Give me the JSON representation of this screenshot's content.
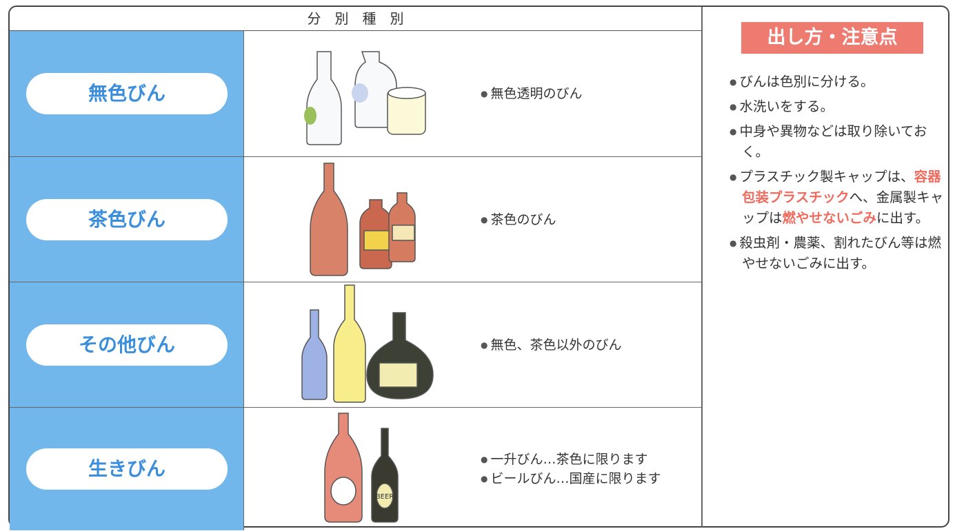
{
  "table": {
    "header": "分　別　種　別",
    "rows": [
      {
        "label": "無色びん",
        "notes": [
          "無色透明のびん"
        ]
      },
      {
        "label": "茶色びん",
        "notes": [
          "茶色のびん"
        ]
      },
      {
        "label": "その他びん",
        "notes": [
          "無色、茶色以外のびん"
        ]
      },
      {
        "label": "生きびん",
        "notes": [
          "一升びん…茶色に限ります",
          "ビールびん…国産に限ります"
        ],
        "bottle_text": "BEER"
      }
    ]
  },
  "guide": {
    "title": "出し方・注意点",
    "items": [
      [
        {
          "text": "びんは色別に分ける。"
        }
      ],
      [
        {
          "text": "水洗いをする。"
        }
      ],
      [
        {
          "text": "中身や異物などは取り除いておく。"
        }
      ],
      [
        {
          "text": "プラスチック製キャップは、"
        },
        {
          "text": "容器包装プラスチック",
          "highlight": true
        },
        {
          "text": "へ、金属製キャップは"
        },
        {
          "text": "燃やせないごみ",
          "highlight": true
        },
        {
          "text": "に出す。"
        }
      ],
      [
        {
          "text": "殺虫剤・農薬、割れたびん等は燃やせないごみに出す。"
        }
      ]
    ]
  }
}
